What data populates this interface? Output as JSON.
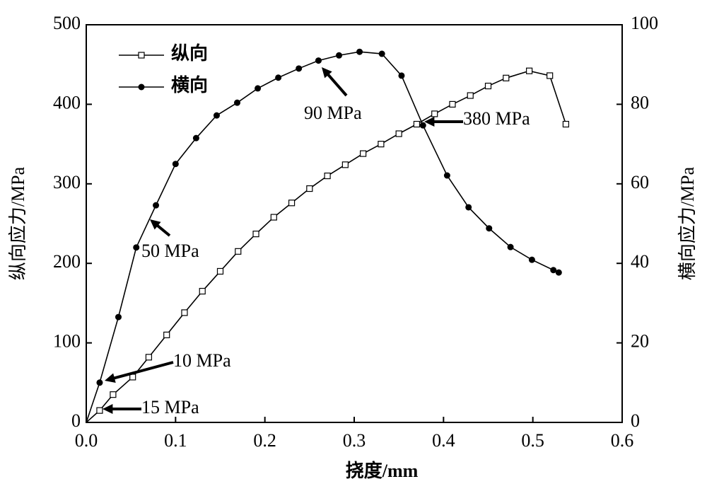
{
  "chart_data": {
    "type": "line",
    "xlabel": "挠度/mm",
    "ylabel": "纵向应力/MPa",
    "y2label": "横向应力/MPa",
    "xlim": [
      0,
      0.6
    ],
    "xticks": [
      {
        "value": 0,
        "label": "0.0"
      },
      0.1,
      0.2,
      0.3,
      0.4,
      0.5,
      0.6
    ],
    "ylim": [
      0,
      500
    ],
    "yticks": [
      0,
      100,
      200,
      300,
      400,
      500
    ],
    "y2lim": [
      0,
      100
    ],
    "y2ticks": [
      0,
      20,
      40,
      60,
      80,
      100
    ],
    "legend": "upper left",
    "series": [
      {
        "name": "纵向",
        "color": "#000000",
        "marker": "square",
        "x": [
          0,
          0.015,
          0.03,
          0.052,
          0.07,
          0.09,
          0.11,
          0.13,
          0.15,
          0.17,
          0.19,
          0.21,
          0.23,
          0.25,
          0.27,
          0.29,
          0.31,
          0.33,
          0.35,
          0.37,
          0.39,
          0.41,
          0.43,
          0.45,
          0.47,
          0.496,
          0.519,
          0.537
        ],
        "values": [
          0,
          15,
          35,
          57,
          82,
          110,
          138,
          165,
          190,
          215,
          237,
          258,
          276,
          294,
          310,
          324,
          338,
          350,
          363,
          375,
          388,
          400,
          411,
          423,
          433,
          442,
          436,
          375
        ]
      },
      {
        "name": "横向",
        "color": "#000000",
        "marker": "circle",
        "axis": "y2",
        "x": [
          0,
          0.015,
          0.036,
          0.056,
          0.078,
          0.1,
          0.123,
          0.146,
          0.169,
          0.192,
          0.215,
          0.238,
          0.26,
          0.283,
          0.306,
          0.331,
          0.353,
          0.377,
          0.404,
          0.428,
          0.451,
          0.475,
          0.499,
          0.523,
          0.529
        ],
        "values": [
          0,
          10,
          26.5,
          44,
          54.6,
          65,
          71.5,
          77.2,
          80.4,
          84,
          86.7,
          89,
          91,
          92.3,
          93.2,
          92.7,
          87.2,
          74.7,
          62.1,
          54.1,
          48.8,
          44.1,
          40.9,
          38.3,
          37.7
        ]
      }
    ],
    "annotations": [
      "90 MPa",
      "380 MPa",
      "50 MPa",
      "10 MPa",
      "15 MPa"
    ]
  }
}
